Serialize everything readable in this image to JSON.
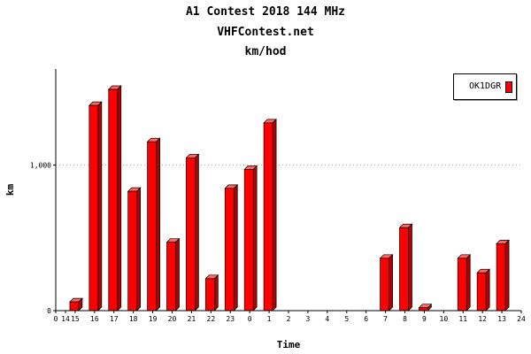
{
  "chart_data": {
    "type": "bar",
    "title": "A1 Contest 2018 144 MHz",
    "subtitle": "VHFContest.net",
    "unit_line": "km/hod",
    "xlabel": "Time",
    "ylabel": "km",
    "x_ticks": [
      "0",
      "14",
      "15",
      "16",
      "17",
      "18",
      "19",
      "20",
      "21",
      "22",
      "23",
      "0",
      "1",
      "2",
      "3",
      "4",
      "5",
      "6",
      "7",
      "8",
      "9",
      "10",
      "11",
      "12",
      "13",
      "24"
    ],
    "categories": [
      "15",
      "16",
      "17",
      "18",
      "19",
      "20",
      "21",
      "22",
      "23",
      "0",
      "1",
      "2",
      "3",
      "4",
      "5",
      "6",
      "7",
      "8",
      "9",
      "10",
      "11",
      "12",
      "13"
    ],
    "y_ticks": [
      {
        "value": 0,
        "label": "0"
      },
      {
        "value": 1000,
        "label": "1,000"
      }
    ],
    "ylim": [
      0,
      1660
    ],
    "grid": "horizontal dotted at 1,000",
    "legend_position": "top-right",
    "series": [
      {
        "name": "OK1DGR",
        "color": "#ff0000",
        "values": [
          60,
          1410,
          1520,
          820,
          1160,
          470,
          1050,
          220,
          840,
          970,
          1290,
          0,
          0,
          0,
          0,
          0,
          360,
          570,
          20,
          0,
          360,
          260,
          460
        ]
      }
    ]
  }
}
